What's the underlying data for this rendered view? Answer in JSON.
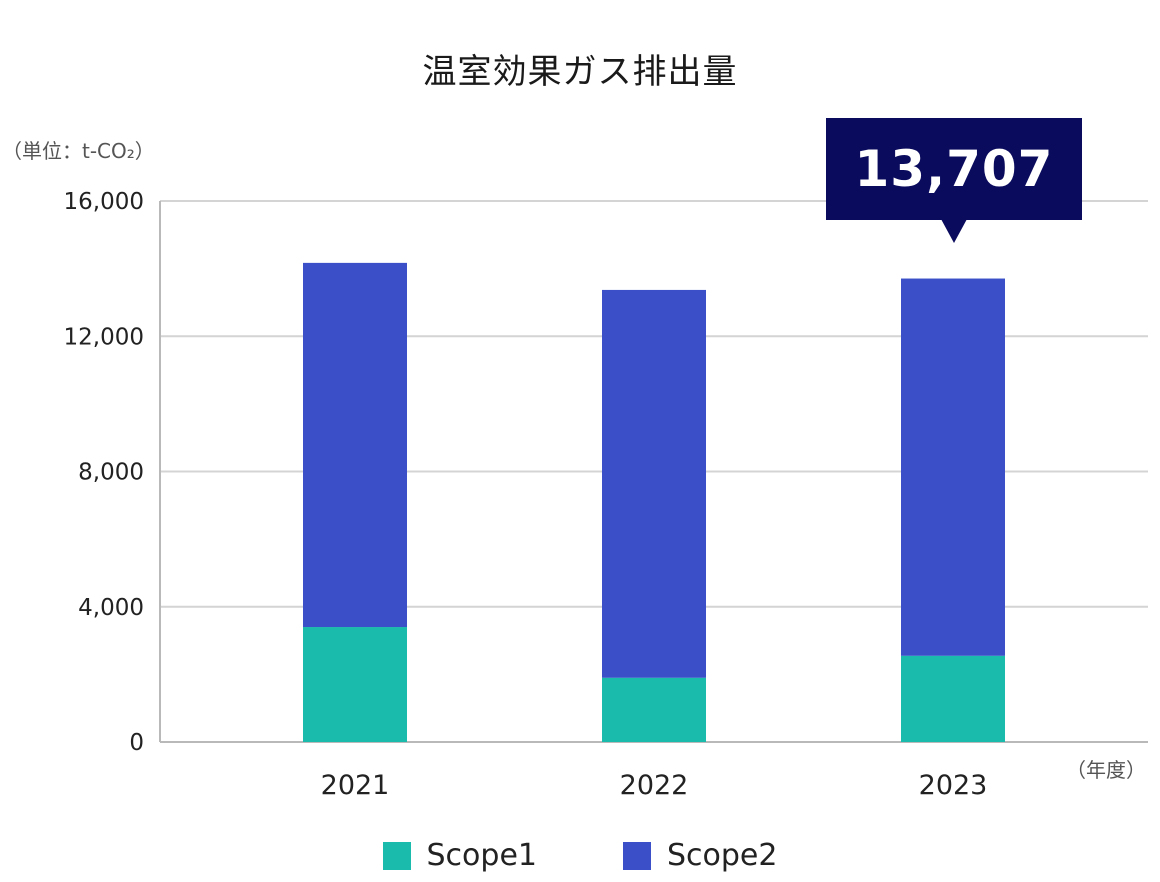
{
  "chart_data": {
    "type": "bar",
    "stacked": true,
    "title": "温室効果ガス排出量",
    "ylabel": "（単位：t-CO₂）",
    "xlabel": "（年度）",
    "categories": [
      "2021",
      "2022",
      "2023"
    ],
    "series": [
      {
        "name": "Scope1",
        "values": [
          3400,
          1900,
          2550
        ],
        "color": "#1abaad"
      },
      {
        "name": "Scope2",
        "values": [
          10770,
          11470,
          11157
        ],
        "color": "#3a4fc8"
      }
    ],
    "ylim": [
      0,
      16000
    ],
    "yticks": [
      "0",
      "4,000",
      "8,000",
      "12,000",
      "16,000"
    ],
    "ytick_values": [
      0,
      4000,
      8000,
      12000,
      16000
    ],
    "grid": true,
    "legend_position": "bottom",
    "callout": {
      "category": "2023",
      "label": "13,707",
      "color": "#0b0b5e"
    }
  }
}
